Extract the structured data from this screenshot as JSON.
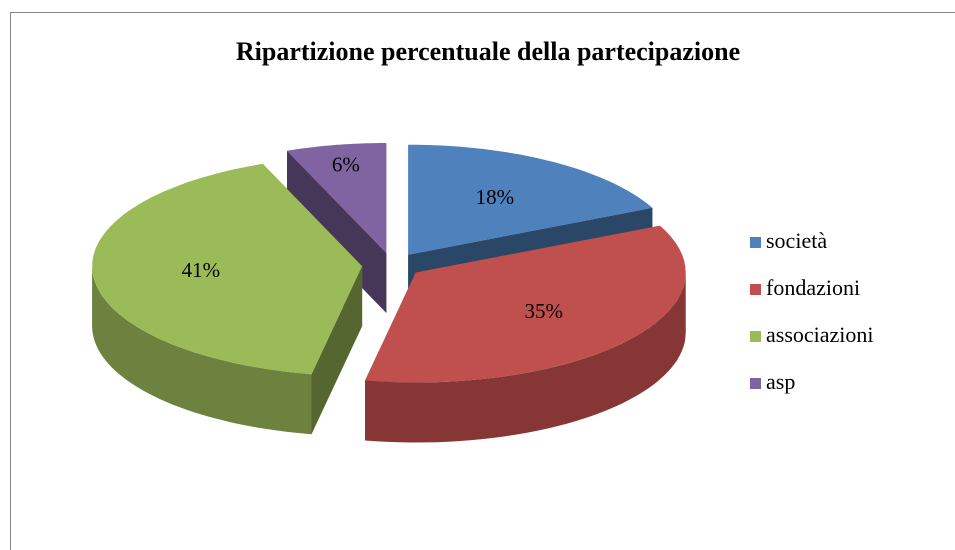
{
  "chart_data": {
    "type": "pie3d",
    "title": "Ripartizione percentuale della partecipazione",
    "categories": [
      "società",
      "fondazioni",
      "associazioni",
      "asp"
    ],
    "values": [
      18,
      35,
      41,
      6
    ],
    "value_labels": [
      "18%",
      "35%",
      "41%",
      "6%"
    ],
    "colors": [
      "#4f81bd",
      "#c0504d",
      "#9bbb59",
      "#8064a2"
    ],
    "legend": "right"
  }
}
